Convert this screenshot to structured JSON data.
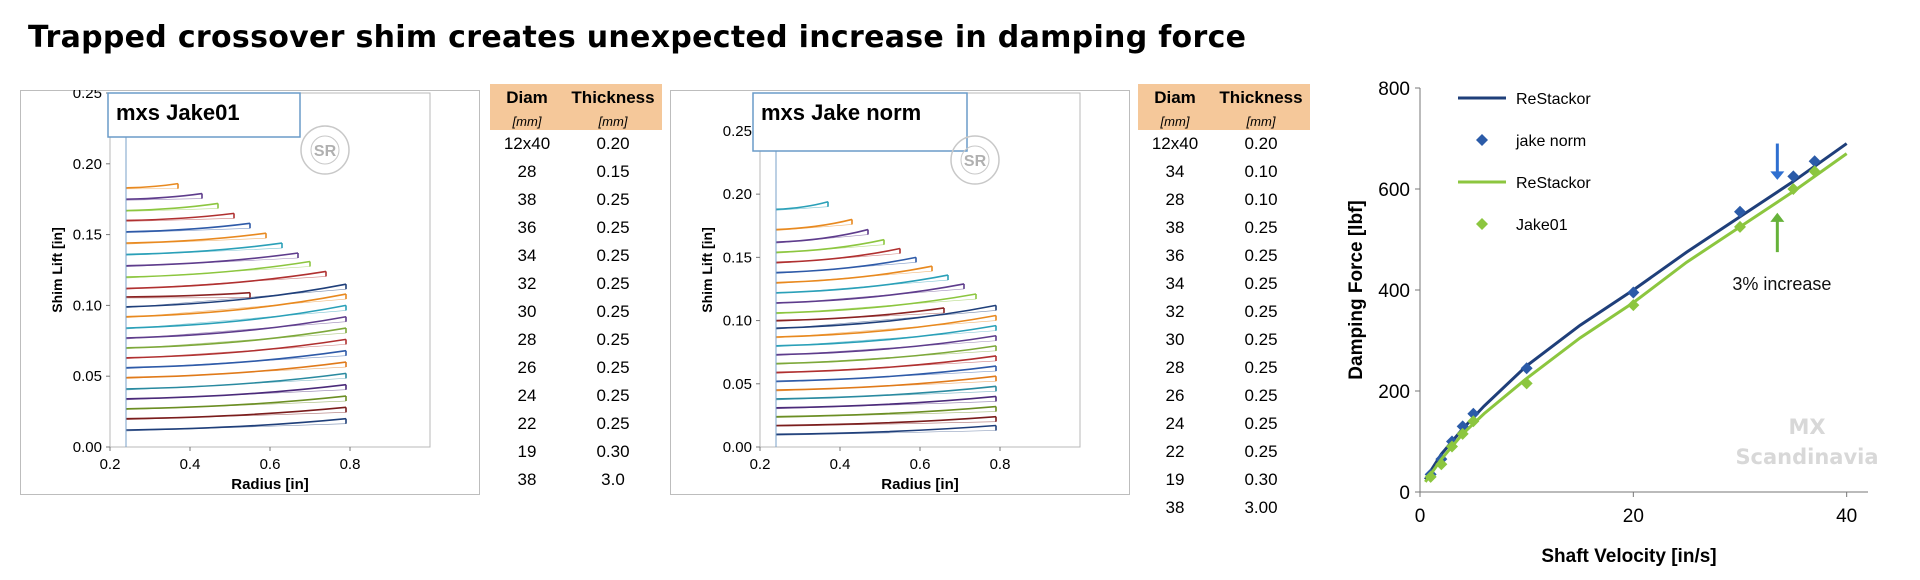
{
  "title": "Trapped crossover shim creates unexpected increase in damping force",
  "colors": {
    "navy": "#1f3f7a",
    "green": "#8cc63f",
    "marker_blue": "#2b5ba8",
    "marker_green": "#8cc63f",
    "arrow_blue": "#2e6fd0",
    "arrow_green": "#66b23a",
    "table_header": "#f5c89a",
    "watermark": "#d8d8d8"
  },
  "watermark": {
    "line1": "MX",
    "line2": "Scandinavia"
  },
  "logo": {
    "text": "SR",
    "ring_text": "ShimReStackor www.com"
  },
  "table_left": {
    "headers": [
      "Diam",
      "Thickness"
    ],
    "units": [
      "[mm]",
      "[mm]"
    ],
    "rows": [
      [
        "12x40",
        "0.20"
      ],
      [
        "28",
        "0.15"
      ],
      [
        "38",
        "0.25"
      ],
      [
        "36",
        "0.25"
      ],
      [
        "34",
        "0.25"
      ],
      [
        "32",
        "0.25"
      ],
      [
        "30",
        "0.25"
      ],
      [
        "28",
        "0.25"
      ],
      [
        "26",
        "0.25"
      ],
      [
        "24",
        "0.25"
      ],
      [
        "22",
        "0.25"
      ],
      [
        "19",
        "0.30"
      ],
      [
        "38",
        "3.0"
      ]
    ]
  },
  "table_right": {
    "headers": [
      "Diam",
      "Thickness"
    ],
    "units": [
      "[mm]",
      "[mm]"
    ],
    "rows": [
      [
        "12x40",
        "0.20"
      ],
      [
        "34",
        "0.10"
      ],
      [
        "28",
        "0.10"
      ],
      [
        "38",
        "0.25"
      ],
      [
        "36",
        "0.25"
      ],
      [
        "34",
        "0.25"
      ],
      [
        "32",
        "0.25"
      ],
      [
        "30",
        "0.25"
      ],
      [
        "28",
        "0.25"
      ],
      [
        "26",
        "0.25"
      ],
      [
        "24",
        "0.25"
      ],
      [
        "22",
        "0.25"
      ],
      [
        "19",
        "0.30"
      ],
      [
        "38",
        "3.00"
      ]
    ]
  },
  "chart_data": [
    {
      "type": "line",
      "name": "mxs Jake01",
      "title": "mxs Jake01",
      "xlabel": "Radius [in]",
      "ylabel": "Shim Lift [in]",
      "xlim": [
        0.2,
        1.0
      ],
      "ylim": [
        0,
        0.25
      ],
      "xticks": [
        "0.2",
        "0.4",
        "0.6",
        "0.8"
      ],
      "yticks": [
        "0.00",
        "0.05",
        "0.10",
        "0.15",
        "0.20",
        "0.25"
      ],
      "xtick_values": [
        0.2,
        0.4,
        0.6,
        0.8
      ],
      "ytick_values": [
        0,
        0.05,
        0.1,
        0.15,
        0.2,
        0.25
      ],
      "clamp_radius": 0.24,
      "shims": [
        {
          "r": 0.79,
          "base": 0.012,
          "tip": 0.02,
          "color": "#1f3f7a"
        },
        {
          "r": 0.79,
          "base": 0.02,
          "tip": 0.028,
          "color": "#7a1c1c"
        },
        {
          "r": 0.79,
          "base": 0.027,
          "tip": 0.036,
          "color": "#6b8e23"
        },
        {
          "r": 0.79,
          "base": 0.034,
          "tip": 0.044,
          "color": "#4b2a7a"
        },
        {
          "r": 0.79,
          "base": 0.041,
          "tip": 0.052,
          "color": "#2a8aa0"
        },
        {
          "r": 0.79,
          "base": 0.049,
          "tip": 0.06,
          "color": "#e07a1a"
        },
        {
          "r": 0.79,
          "base": 0.056,
          "tip": 0.068,
          "color": "#2e5aa8"
        },
        {
          "r": 0.79,
          "base": 0.063,
          "tip": 0.076,
          "color": "#b03030"
        },
        {
          "r": 0.79,
          "base": 0.07,
          "tip": 0.084,
          "color": "#7da83a"
        },
        {
          "r": 0.79,
          "base": 0.077,
          "tip": 0.092,
          "color": "#5e3c8c"
        },
        {
          "r": 0.79,
          "base": 0.084,
          "tip": 0.1,
          "color": "#2aa0b8"
        },
        {
          "r": 0.79,
          "base": 0.092,
          "tip": 0.108,
          "color": "#e8891f"
        },
        {
          "r": 0.79,
          "base": 0.099,
          "tip": 0.115,
          "color": "#1f3f7a"
        },
        {
          "r": 0.55,
          "base": 0.106,
          "tip": 0.109,
          "color": "#8b2323"
        },
        {
          "r": 0.74,
          "base": 0.112,
          "tip": 0.124,
          "color": "#b03030"
        },
        {
          "r": 0.7,
          "base": 0.12,
          "tip": 0.131,
          "color": "#8cc63f"
        },
        {
          "r": 0.67,
          "base": 0.128,
          "tip": 0.137,
          "color": "#5e3c8c"
        },
        {
          "r": 0.63,
          "base": 0.136,
          "tip": 0.144,
          "color": "#2aa0b8"
        },
        {
          "r": 0.59,
          "base": 0.144,
          "tip": 0.151,
          "color": "#e8891f"
        },
        {
          "r": 0.55,
          "base": 0.152,
          "tip": 0.158,
          "color": "#2e5aa8"
        },
        {
          "r": 0.51,
          "base": 0.16,
          "tip": 0.165,
          "color": "#b03030"
        },
        {
          "r": 0.47,
          "base": 0.167,
          "tip": 0.172,
          "color": "#8cc63f"
        },
        {
          "r": 0.43,
          "base": 0.175,
          "tip": 0.179,
          "color": "#5e3c8c"
        },
        {
          "r": 0.37,
          "base": 0.183,
          "tip": 0.186,
          "color": "#e8891f"
        }
      ]
    },
    {
      "type": "line",
      "name": "mxs Jake norm",
      "title": "mxs Jake norm",
      "xlabel": "Radius [in]",
      "ylabel": "Shim Lift [in]",
      "xlim": [
        0.2,
        1.0
      ],
      "ylim": [
        0,
        0.28
      ],
      "xticks": [
        "0.2",
        "0.4",
        "0.6",
        "0.8"
      ],
      "yticks": [
        "0.00",
        "0.05",
        "0.10",
        "0.15",
        "0.20",
        "0.25"
      ],
      "xtick_values": [
        0.2,
        0.4,
        0.6,
        0.8
      ],
      "ytick_values": [
        0,
        0.05,
        0.1,
        0.15,
        0.2,
        0.25
      ],
      "clamp_radius": 0.24,
      "shims": [
        {
          "r": 0.79,
          "base": 0.01,
          "tip": 0.017,
          "color": "#1f3f7a"
        },
        {
          "r": 0.79,
          "base": 0.017,
          "tip": 0.024,
          "color": "#7a1c1c"
        },
        {
          "r": 0.79,
          "base": 0.024,
          "tip": 0.032,
          "color": "#6b8e23"
        },
        {
          "r": 0.79,
          "base": 0.031,
          "tip": 0.04,
          "color": "#4b2a7a"
        },
        {
          "r": 0.79,
          "base": 0.038,
          "tip": 0.048,
          "color": "#2a8aa0"
        },
        {
          "r": 0.79,
          "base": 0.045,
          "tip": 0.056,
          "color": "#e07a1a"
        },
        {
          "r": 0.79,
          "base": 0.052,
          "tip": 0.064,
          "color": "#2e5aa8"
        },
        {
          "r": 0.79,
          "base": 0.059,
          "tip": 0.072,
          "color": "#b03030"
        },
        {
          "r": 0.79,
          "base": 0.066,
          "tip": 0.08,
          "color": "#7da83a"
        },
        {
          "r": 0.79,
          "base": 0.073,
          "tip": 0.088,
          "color": "#5e3c8c"
        },
        {
          "r": 0.79,
          "base": 0.08,
          "tip": 0.096,
          "color": "#2aa0b8"
        },
        {
          "r": 0.79,
          "base": 0.087,
          "tip": 0.104,
          "color": "#e8891f"
        },
        {
          "r": 0.79,
          "base": 0.094,
          "tip": 0.112,
          "color": "#1f3f7a"
        },
        {
          "r": 0.66,
          "base": 0.1,
          "tip": 0.11,
          "color": "#8b2323"
        },
        {
          "r": 0.74,
          "base": 0.106,
          "tip": 0.121,
          "color": "#8cc63f"
        },
        {
          "r": 0.71,
          "base": 0.114,
          "tip": 0.129,
          "color": "#5e3c8c"
        },
        {
          "r": 0.67,
          "base": 0.122,
          "tip": 0.136,
          "color": "#2aa0b8"
        },
        {
          "r": 0.63,
          "base": 0.13,
          "tip": 0.143,
          "color": "#e8891f"
        },
        {
          "r": 0.59,
          "base": 0.138,
          "tip": 0.15,
          "color": "#2e5aa8"
        },
        {
          "r": 0.55,
          "base": 0.146,
          "tip": 0.157,
          "color": "#b03030"
        },
        {
          "r": 0.51,
          "base": 0.154,
          "tip": 0.164,
          "color": "#8cc63f"
        },
        {
          "r": 0.47,
          "base": 0.162,
          "tip": 0.172,
          "color": "#5e3c8c"
        },
        {
          "r": 0.43,
          "base": 0.172,
          "tip": 0.18,
          "color": "#e8891f"
        },
        {
          "r": 0.37,
          "base": 0.188,
          "tip": 0.194,
          "color": "#2aa0b8"
        }
      ]
    },
    {
      "type": "line",
      "xlabel": "Shaft Velocity [in/s]",
      "ylabel": "Damping Force [lbf]",
      "xlim": [
        0,
        42
      ],
      "ylim": [
        0,
        800
      ],
      "xticks": [
        "0",
        "20",
        "40"
      ],
      "yticks": [
        "0",
        "200",
        "400",
        "600",
        "800"
      ],
      "xtick_values": [
        0,
        20,
        40
      ],
      "ytick_values": [
        0,
        200,
        400,
        600,
        800
      ],
      "legend_position": "top-left",
      "annotation": "3% increase",
      "annotation_arrows": [
        {
          "series": "jake norm",
          "x": 33.5
        },
        {
          "series": "Jake01",
          "x": 33.5
        }
      ],
      "series": [
        {
          "name": "ReStackor",
          "kind": "line",
          "color": "#1f3f7a",
          "x": [
            0.5,
            2,
            4,
            6,
            10,
            15,
            20,
            25,
            30,
            35,
            40
          ],
          "y": [
            25,
            75,
            125,
            170,
            250,
            330,
            400,
            475,
            545,
            615,
            690
          ]
        },
        {
          "name": "jake norm",
          "kind": "marker",
          "color": "#2b5ba8",
          "x": [
            1,
            2,
            3,
            4,
            5,
            10,
            20,
            30,
            35,
            37
          ],
          "y": [
            35,
            65,
            100,
            130,
            155,
            245,
            395,
            555,
            625,
            655
          ]
        },
        {
          "name": "ReStackor",
          "kind": "line",
          "color": "#8cc63f",
          "x": [
            0.5,
            2,
            4,
            6,
            10,
            15,
            20,
            25,
            30,
            35,
            40
          ],
          "y": [
            20,
            65,
            115,
            155,
            225,
            305,
            375,
            455,
            525,
            595,
            670
          ]
        },
        {
          "name": "Jake01",
          "kind": "marker",
          "color": "#8cc63f",
          "x": [
            1,
            2,
            3,
            4,
            5,
            10,
            20,
            30,
            35,
            37
          ],
          "y": [
            30,
            55,
            90,
            115,
            140,
            215,
            370,
            525,
            600,
            635
          ]
        }
      ]
    }
  ]
}
